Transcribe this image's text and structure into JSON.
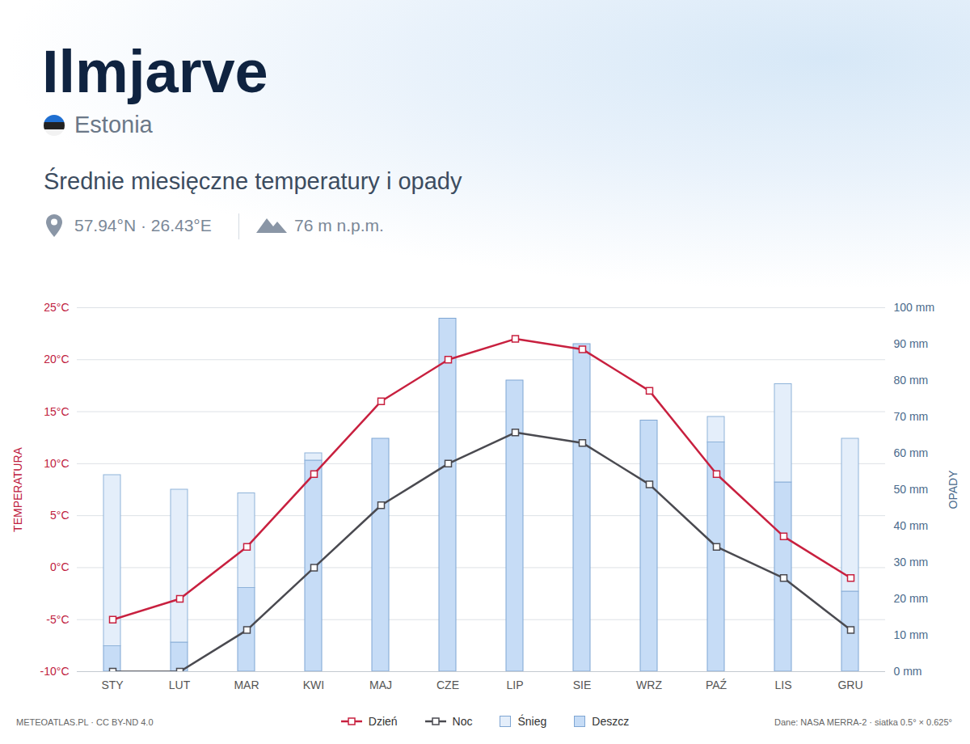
{
  "chart_data": {
    "type": "combo",
    "title": "Ilmjarve",
    "subtitle": "Średnie miesięczne temperatury i opady",
    "annotations": [
      "Estonia",
      "57.94°N · 26.43°E",
      "76 m n.p.m.",
      "METEOATLAS.PL · CC BY-ND 4.0",
      "Dane: NASA MERRA-2 · siatka 0.5° × 0.625°"
    ],
    "ylabel": "TEMPERATURA",
    "y2label": "OPADY",
    "categories": [
      "STY",
      "LUT",
      "MAR",
      "KWI",
      "MAJ",
      "CZE",
      "LIP",
      "SIE",
      "WRZ",
      "PAŹ",
      "LIS",
      "GRU"
    ],
    "ylim": [
      -10,
      25
    ],
    "yticks": [
      {
        "value": -10,
        "label": "-10°C"
      },
      {
        "value": -5,
        "label": "-5°C"
      },
      {
        "value": 0,
        "label": "0°C"
      },
      {
        "value": 5,
        "label": "5°C"
      },
      {
        "value": 10,
        "label": "10°C"
      },
      {
        "value": 15,
        "label": "15°C"
      },
      {
        "value": 20,
        "label": "20°C"
      },
      {
        "value": 25,
        "label": "25°C"
      }
    ],
    "y2lim": [
      0,
      100
    ],
    "y2ticks": [
      {
        "value": 0,
        "label": "0 mm"
      },
      {
        "value": 10,
        "label": "10 mm"
      },
      {
        "value": 20,
        "label": "20 mm"
      },
      {
        "value": 30,
        "label": "30 mm"
      },
      {
        "value": 40,
        "label": "40 mm"
      },
      {
        "value": 50,
        "label": "50 mm"
      },
      {
        "value": 60,
        "label": "60 mm"
      },
      {
        "value": 70,
        "label": "70 mm"
      },
      {
        "value": 80,
        "label": "80 mm"
      },
      {
        "value": 90,
        "label": "90 mm"
      },
      {
        "value": 100,
        "label": "100 mm"
      }
    ],
    "grid": true,
    "stacked": true,
    "legend": "bottom",
    "series": [
      {
        "name": "Dzień",
        "type": "line",
        "color": "#c8203f",
        "marker": "square",
        "line_style": "solid",
        "values": [
          -5,
          -3,
          2,
          9,
          16,
          20,
          22,
          21,
          17,
          9,
          3,
          -1
        ]
      },
      {
        "name": "Noc",
        "type": "line",
        "color": "#4a4a50",
        "marker": "square",
        "line_style": "solid",
        "values": [
          -10,
          -10,
          -6,
          0,
          6,
          10,
          13,
          12,
          8,
          2,
          -1,
          -6
        ]
      },
      {
        "name": "Śnieg",
        "type": "bar",
        "axis": "y2",
        "color": "#e4eefa",
        "values": [
          47,
          42,
          26,
          2,
          0,
          0,
          0,
          0,
          0,
          7,
          27,
          42
        ]
      },
      {
        "name": "Deszcz",
        "type": "bar",
        "axis": "y2",
        "color": "#c6dcf6",
        "values": [
          7,
          8,
          23,
          58,
          64,
          97,
          80,
          90,
          69,
          63,
          52,
          22
        ]
      }
    ]
  }
}
